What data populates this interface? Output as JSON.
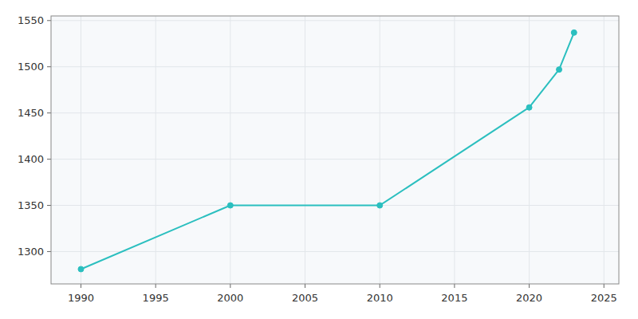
{
  "chart_data": {
    "type": "line",
    "x": [
      1990,
      2000,
      2010,
      2020,
      2022,
      2023
    ],
    "values": [
      1281,
      1350,
      1350,
      1456,
      1497,
      1537
    ],
    "color": "#2bbfbf",
    "marker": "circle",
    "xlim": [
      1988,
      2026
    ],
    "ylim": [
      1265,
      1555
    ],
    "xticks": [
      1990,
      1995,
      2000,
      2005,
      2010,
      2015,
      2020,
      2025
    ],
    "yticks": [
      1300,
      1350,
      1400,
      1450,
      1500,
      1550
    ],
    "grid": true
  }
}
